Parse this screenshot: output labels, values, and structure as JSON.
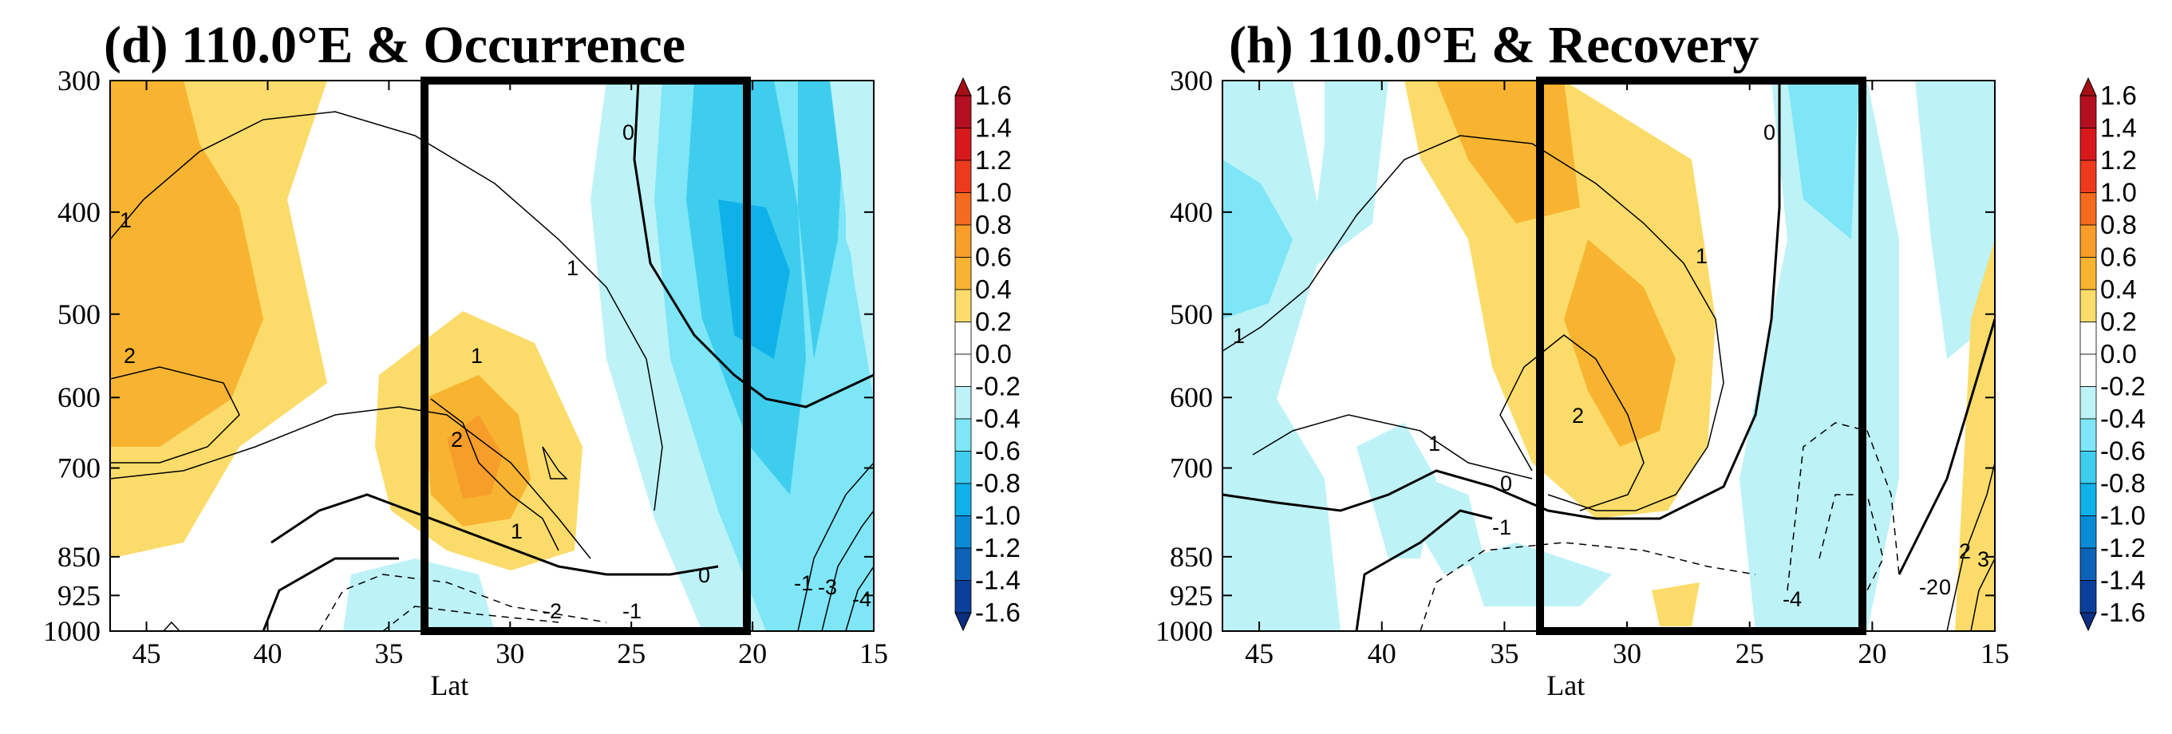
{
  "chart_data": [
    {
      "type": "contour",
      "title": "(d) 110.0°E & Occurrence",
      "xlabel": "Lat",
      "ylabel": "",
      "x_ticks": [
        45,
        40,
        35,
        30,
        25,
        20,
        15
      ],
      "xlim": [
        46.5,
        15
      ],
      "y_ticks": [
        300,
        400,
        500,
        600,
        700,
        850,
        925,
        1000
      ],
      "ylim": [
        1000,
        300
      ],
      "box_lat": [
        33.5,
        21
      ],
      "shaded_field": [
        {
          "level": "0.2 to 0.4",
          "region": "yellow area left (46-37°N, 300-850hPa)"
        },
        {
          "level": "0.4 to 0.6",
          "region": "orange core near 44°N, 400-700hPa"
        },
        {
          "level": "0.2 to 0.6",
          "region": "center maximum near 31°N, 550-800hPa"
        },
        {
          "level": "-0.2 to -1.2",
          "region": "blue band 28-15°N, minimum near 23°N 500-600hPa"
        },
        {
          "level": "-0.2",
          "region": "small area near 35-25°N, 900-1000hPa"
        }
      ],
      "contour_labels": [
        "1",
        "2",
        "0",
        "1",
        "1",
        "2",
        "1",
        "0",
        "-2",
        "-1",
        "-1",
        "-3",
        "-4"
      ]
    },
    {
      "type": "contour",
      "title": "(h) 110.0°E & Recovery",
      "xlabel": "Lat",
      "ylabel": "",
      "x_ticks": [
        45,
        40,
        35,
        30,
        25,
        20,
        15
      ],
      "xlim": [
        46.5,
        15
      ],
      "y_ticks": [
        300,
        400,
        500,
        600,
        700,
        850,
        925,
        1000
      ],
      "ylim": [
        1000,
        300
      ],
      "box_lat": [
        33.5,
        21
      ],
      "shaded_field": [
        {
          "level": "0.2 to 0.8",
          "region": "yellow-orange plume 34-28°N, 300-750hPa"
        },
        {
          "level": "-0.2 to -0.4",
          "region": "blue areas 46-36°N and 26-20°N"
        },
        {
          "level": "0.2 to 0.4",
          "region": "narrow yellow strip near 16°N"
        }
      ],
      "contour_labels": [
        "1",
        "0",
        "1",
        "2",
        "1",
        "0",
        "-1",
        "-4",
        "-2",
        "0",
        "2",
        "3"
      ]
    }
  ],
  "colorbar": {
    "labels": [
      "1.6",
      "1.4",
      "1.2",
      "1.0",
      "0.8",
      "0.6",
      "0.4",
      "0.2",
      "0.0",
      "-0.2",
      "-0.4",
      "-0.6",
      "-0.8",
      "-1.0",
      "-1.2",
      "-1.4",
      "-1.6"
    ],
    "colors": [
      "#b40f20",
      "#d7191c",
      "#ee3a1c",
      "#f46a1e",
      "#f79d2a",
      "#f8b431",
      "#fbdc6a",
      "#ffffff",
      "#ffffff",
      "#bdf2f7",
      "#7ee6f6",
      "#3fcdee",
      "#0fb1e9",
      "#0a8bd6",
      "#0d63b8",
      "#0c3f99"
    ]
  }
}
